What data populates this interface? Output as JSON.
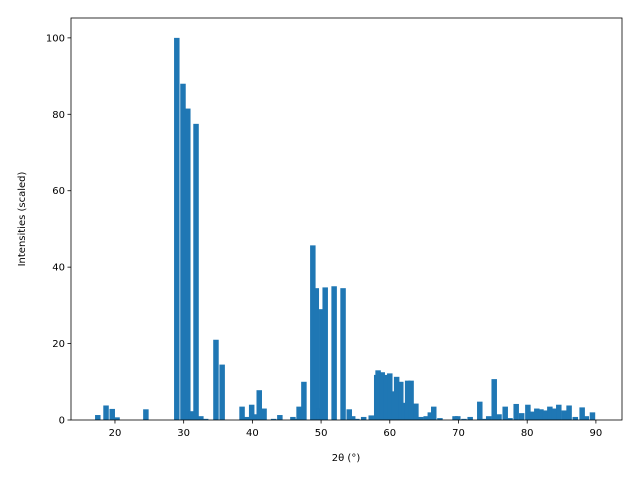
{
  "chart_data": {
    "type": "bar",
    "xlabel": "2θ (°)",
    "ylabel": "Intensities (scaled)",
    "color": "#1f77b4",
    "x": [
      17.5,
      18.7,
      19.6,
      20.3,
      24.5,
      29.0,
      29.9,
      30.6,
      31.1,
      31.8,
      32.5,
      33.2,
      34.7,
      35.6,
      38.5,
      39.2,
      39.9,
      40.4,
      41.0,
      41.7,
      43.1,
      44.0,
      45.9,
      46.6,
      46.8,
      47.5,
      48.8,
      49.3,
      49.7,
      50.1,
      50.6,
      51.9,
      53.2,
      54.1,
      54.6,
      55.2,
      56.2,
      57.3,
      58.1,
      58.3,
      58.9,
      59.5,
      60.0,
      60.6,
      61.0,
      61.6,
      62.1,
      62.6,
      63.1,
      63.8,
      64.5,
      65.3,
      65.9,
      66.4,
      67.3,
      69.5,
      69.9,
      70.8,
      71.7,
      73.1,
      73.9,
      74.4,
      75.2,
      75.9,
      76.8,
      77.5,
      78.4,
      79.2,
      80.1,
      80.8,
      81.4,
      82.0,
      82.6,
      83.3,
      84.0,
      84.6,
      85.4,
      86.1,
      87.0,
      88.0,
      88.6,
      89.5
    ],
    "values": [
      1.3,
      3.8,
      2.9,
      0.7,
      2.8,
      100,
      88,
      81.5,
      2.3,
      77.5,
      1,
      0.3,
      21,
      14.5,
      3.5,
      0.8,
      4,
      1.5,
      7.8,
      3,
      0.3,
      1.3,
      0.8,
      0.3,
      3.5,
      10,
      45.7,
      34.5,
      3,
      29,
      34.7,
      35,
      34.5,
      2.8,
      1,
      0.3,
      0.8,
      1.2,
      11.8,
      13,
      12.5,
      11.8,
      12.2,
      7.5,
      11.3,
      10,
      4.5,
      10.3,
      10.3,
      4.3,
      0.8,
      1,
      2,
      3.5,
      0.5,
      1,
      1,
      0.3,
      0.8,
      4.8,
      0.3,
      1,
      10.7,
      1.5,
      3.5,
      0.5,
      4.2,
      1.8,
      4,
      2.2,
      3,
      2.8,
      2.5,
      3.5,
      3,
      4,
      2.5,
      3.8,
      0.8,
      3.3,
      1,
      2
    ],
    "xlim": [
      13.6,
      93.8
    ],
    "ylim": [
      0,
      105.2
    ],
    "xticks": [
      20,
      30,
      40,
      50,
      60,
      70,
      80,
      90
    ],
    "yticks": [
      0,
      20,
      40,
      60,
      80,
      100
    ]
  }
}
